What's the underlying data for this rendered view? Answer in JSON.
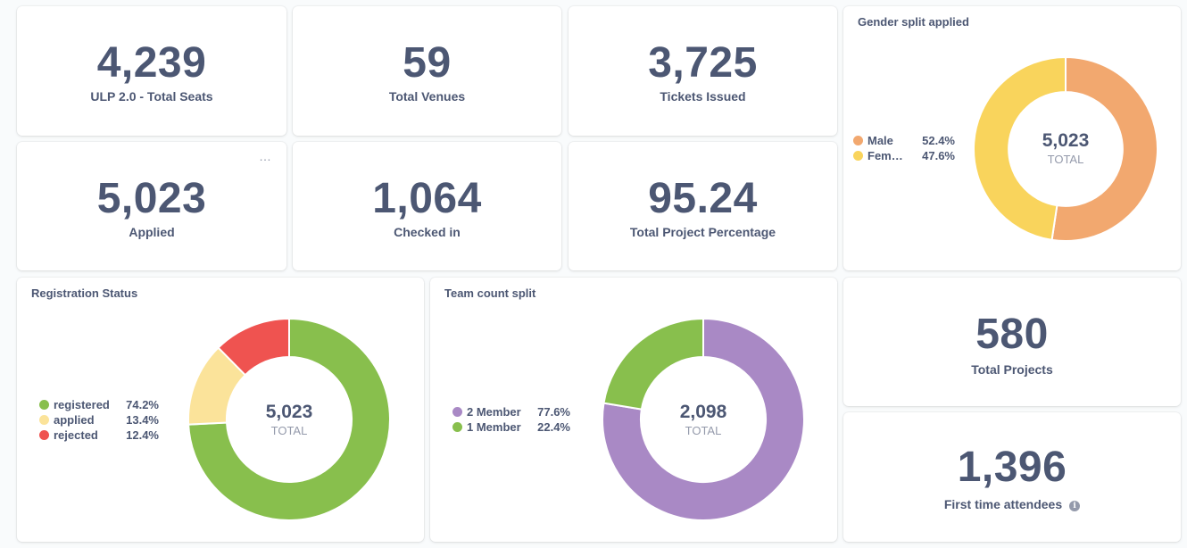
{
  "scalars": {
    "seats": {
      "value": "4,239",
      "label": "ULP 2.0 - Total Seats"
    },
    "venues": {
      "value": "59",
      "label": "Total Venues"
    },
    "tickets": {
      "value": "3,725",
      "label": "Tickets Issued"
    },
    "applied": {
      "value": "5,023",
      "label": "Applied"
    },
    "checked_in": {
      "value": "1,064",
      "label": "Checked in"
    },
    "project_pct": {
      "value": "95.24",
      "label": "Total Project Percentage"
    },
    "projects": {
      "value": "580",
      "label": "Total Projects"
    },
    "first_time": {
      "value": "1,396",
      "label": "First time attendees"
    }
  },
  "more_icon": "…",
  "info_icon": "i",
  "colors": {
    "male": "#f2a86f",
    "female": "#f9d45c",
    "registered": "#88bf4d",
    "applied": "#fbe39a",
    "rejected": "#ef5350",
    "member2": "#a989c5",
    "member1": "#88bf4d"
  },
  "chart_data": [
    {
      "id": "gender",
      "type": "pie",
      "title": "Gender split applied",
      "total": "5,023",
      "total_label": "TOTAL",
      "slices": [
        {
          "name": "Male",
          "pct_label": "52.4%",
          "value": 52.4,
          "color": "#f2a86f"
        },
        {
          "name": "Fem…",
          "pct_label": "47.6%",
          "value": 47.6,
          "color": "#f9d45c"
        }
      ]
    },
    {
      "id": "registration",
      "type": "pie",
      "title": "Registration Status",
      "total": "5,023",
      "total_label": "TOTAL",
      "slices": [
        {
          "name": "registered",
          "pct_label": "74.2%",
          "value": 74.2,
          "color": "#88bf4d"
        },
        {
          "name": "applied",
          "pct_label": "13.4%",
          "value": 13.4,
          "color": "#fbe39a"
        },
        {
          "name": "rejected",
          "pct_label": "12.4%",
          "value": 12.4,
          "color": "#ef5350"
        }
      ]
    },
    {
      "id": "team",
      "type": "pie",
      "title": "Team count split",
      "total": "2,098",
      "total_label": "TOTAL",
      "slices": [
        {
          "name": "2 Member",
          "pct_label": "77.6%",
          "value": 77.6,
          "color": "#a989c5"
        },
        {
          "name": "1 Member",
          "pct_label": "22.4%",
          "value": 22.4,
          "color": "#88bf4d"
        }
      ]
    }
  ]
}
